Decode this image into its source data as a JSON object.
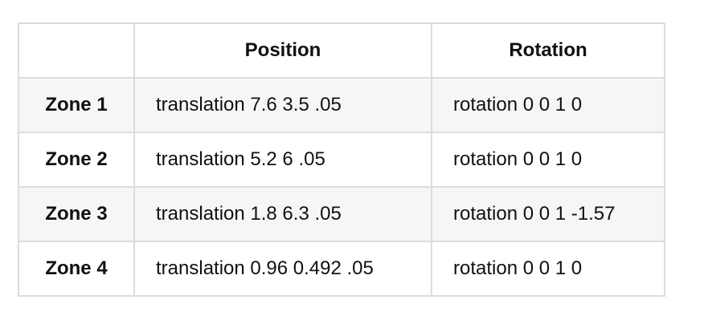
{
  "table": {
    "headers": [
      "",
      "Position",
      "Rotation"
    ],
    "rows": [
      {
        "zone": "Zone 1",
        "position": "translation 7.6 3.5 .05",
        "rotation": "rotation 0 0 1 0"
      },
      {
        "zone": "Zone 2",
        "position": "translation 5.2 6 .05",
        "rotation": "rotation 0 0 1 0"
      },
      {
        "zone": "Zone 3",
        "position": "translation 1.8 6.3 .05",
        "rotation": "rotation 0 0 1 -1.57"
      },
      {
        "zone": "Zone 4",
        "position": "translation 0.96 0.492 .05",
        "rotation": "rotation 0 0 1 0"
      }
    ]
  }
}
